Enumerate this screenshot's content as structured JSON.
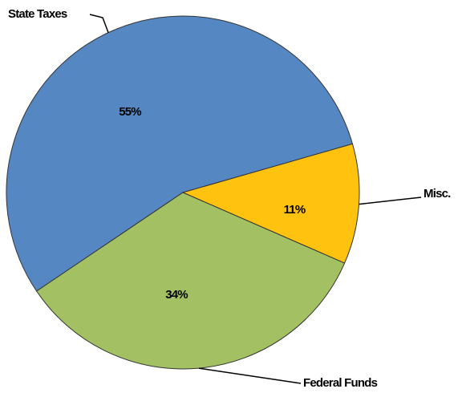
{
  "chart_data": {
    "type": "pie",
    "categories": [
      "State Taxes",
      "Misc.",
      "Federal Funds"
    ],
    "values": [
      55,
      11,
      34
    ],
    "value_labels": [
      "55%",
      "11%",
      "34%"
    ],
    "colors": [
      "#5587c2",
      "#ffc20e",
      "#a3c163"
    ]
  }
}
